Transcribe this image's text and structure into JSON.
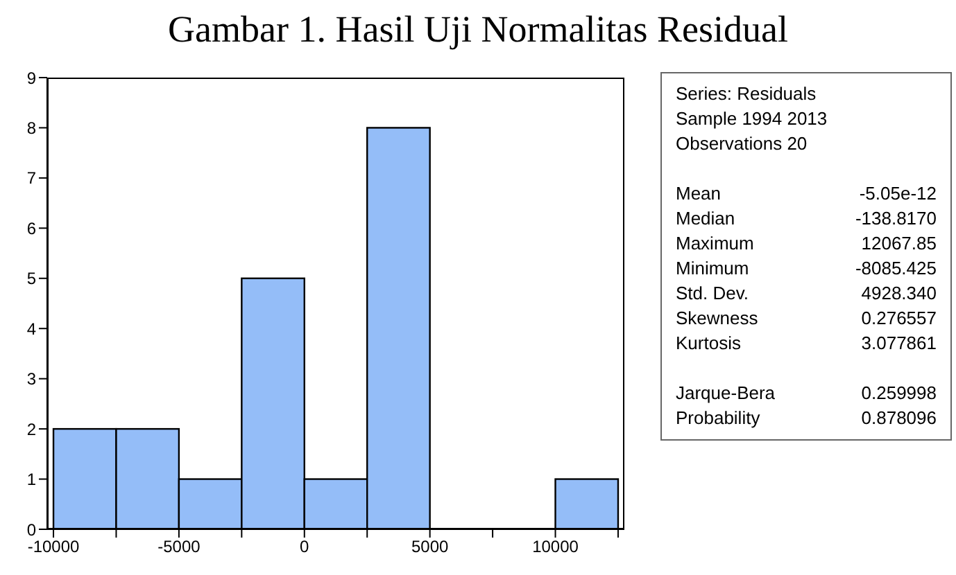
{
  "chart_data": {
    "type": "histogram",
    "title": "Gambar 1. Hasil Uji Normalitas Residual",
    "bins": [
      -10000,
      -7500,
      -5000,
      -2500,
      0,
      2500,
      5000,
      7500,
      10000,
      12500
    ],
    "values": [
      2,
      2,
      1,
      5,
      1,
      8,
      0,
      0,
      1
    ],
    "color": "#94bdf8",
    "xlim": [
      -10250,
      12750
    ],
    "xticks": [
      -10000,
      {
        "value": -7500,
        "label": null
      },
      -5000,
      {
        "value": -2500,
        "label": null
      },
      0,
      {
        "value": 2500,
        "label": null
      },
      5000,
      {
        "value": 7500,
        "label": null
      },
      10000,
      {
        "value": 12500,
        "label": null
      }
    ],
    "ylim": [
      0,
      9
    ],
    "yticks": [
      0,
      1,
      2,
      3,
      4,
      5,
      6,
      7,
      8,
      9
    ],
    "grid": false,
    "legend": false,
    "annotations": [
      "Series: Residuals",
      "Sample 1994 2013",
      "Observations 20",
      "Mean\t-5.05e-12",
      "Median\t-138.8170",
      "Maximum\t12067.85",
      "Minimum\t-8085.425",
      "Std. Dev.\t4928.340",
      "Skewness\t0.276557",
      "Kurtosis\t3.077861",
      "Jarque-Bera\t0.259998",
      "Probability\t0.878096"
    ]
  }
}
